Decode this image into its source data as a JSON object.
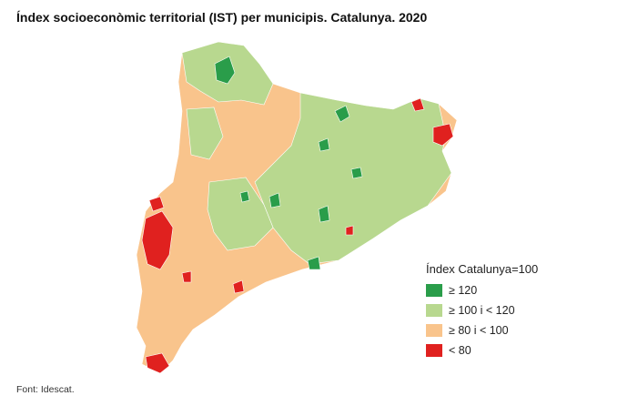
{
  "title": "Índex socioeconòmic territorial (IST) per municipis. Catalunya. 2020",
  "legend": {
    "title": "Índex Catalunya=100",
    "items": [
      {
        "label": "≥ 120",
        "color": "#2a9d4a"
      },
      {
        "label": "≥ 100 i < 120",
        "color": "#b8d88f"
      },
      {
        "label": "≥ 80 i < 100",
        "color": "#f9c48c"
      },
      {
        "label": "< 80",
        "color": "#e0211f"
      }
    ]
  },
  "source": "Font: Idescat."
}
